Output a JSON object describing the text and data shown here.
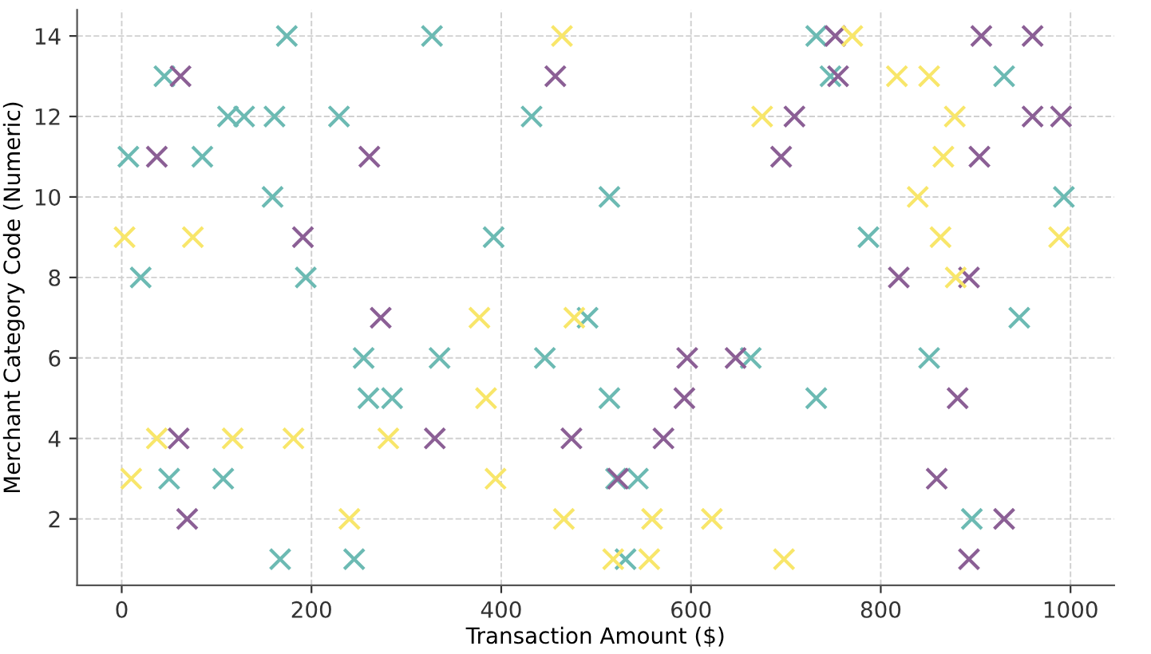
{
  "chart_data": {
    "type": "scatter",
    "xlabel": "Transaction Amount ($)",
    "ylabel": "Merchant Category Code (Numeric)",
    "marker": "cross",
    "grid": true,
    "xlim": [
      -47,
      1046
    ],
    "ylim": [
      0.35,
      14.65
    ],
    "xticks": [
      0,
      200,
      400,
      600,
      800,
      1000
    ],
    "yticks": [
      2,
      4,
      6,
      8,
      10,
      12,
      14
    ],
    "series": [
      {
        "color": "#6cbab3",
        "x": [
          7,
          45,
          20,
          85,
          112,
          129,
          161,
          174,
          159,
          194,
          229,
          327,
          432,
          392,
          514,
          732,
          747,
          930,
          993,
          787,
          255,
          260,
          285,
          335,
          446,
          491,
          50,
          107,
          167,
          245,
          514,
          663,
          732,
          851,
          946,
          521,
          544,
          531,
          896
        ],
        "values": [
          11,
          13,
          8,
          11,
          12,
          12,
          12,
          14,
          10,
          8,
          12,
          14,
          12,
          9,
          10,
          14,
          13,
          13,
          10,
          9,
          6,
          5,
          5,
          6,
          6,
          7,
          3,
          3,
          1,
          1,
          5,
          6,
          5,
          6,
          7,
          3,
          3,
          1,
          2
        ]
      },
      {
        "color": "#8b5f95",
        "x": [
          62,
          37,
          191,
          261,
          457,
          752,
          755,
          906,
          960,
          709,
          960,
          990,
          695,
          904,
          819,
          893,
          273,
          60,
          69,
          330,
          474,
          596,
          647,
          593,
          881,
          571,
          523,
          859,
          930,
          893
        ],
        "values": [
          13,
          11,
          9,
          11,
          13,
          14,
          13,
          14,
          14,
          12,
          12,
          12,
          11,
          11,
          8,
          8,
          7,
          4,
          2,
          4,
          4,
          6,
          6,
          5,
          5,
          4,
          3,
          3,
          2,
          1
        ]
      },
      {
        "color": "#f8e66a",
        "x": [
          3,
          75,
          464,
          770,
          675,
          817,
          851,
          878,
          866,
          839,
          863,
          988,
          879,
          377,
          477,
          384,
          281,
          37,
          117,
          181,
          10,
          394,
          240,
          466,
          559,
          622,
          518,
          556,
          698
        ],
        "values": [
          9,
          9,
          14,
          14,
          12,
          13,
          13,
          12,
          11,
          10,
          9,
          9,
          8,
          7,
          7,
          5,
          4,
          4,
          4,
          4,
          3,
          3,
          2,
          2,
          2,
          2,
          1,
          1,
          1
        ]
      }
    ]
  }
}
